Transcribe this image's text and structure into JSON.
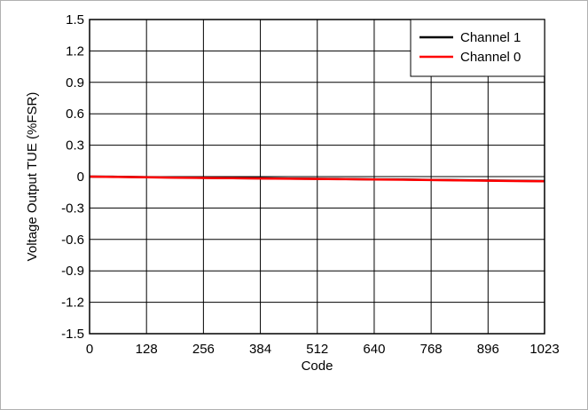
{
  "chart_data": {
    "type": "line",
    "title": "",
    "xlabel": "Code",
    "ylabel": "Voltage Output TUE (%FSR)",
    "xlim": [
      0,
      1023
    ],
    "ylim": [
      -1.5,
      1.5
    ],
    "x_ticks": [
      0,
      128,
      256,
      384,
      512,
      640,
      768,
      896,
      1023
    ],
    "x_tick_labels": [
      "0",
      "128",
      "256",
      "384",
      "512",
      "640",
      "768",
      "896",
      "1023"
    ],
    "y_ticks": [
      1.5,
      1.2,
      0.9,
      0.6,
      0.3,
      0,
      -0.3,
      -0.6,
      -0.9,
      -1.2,
      -1.5
    ],
    "y_tick_labels": [
      "1.5",
      "1.2",
      "0.9",
      "0.6",
      "0.3",
      "0",
      "-0.3",
      "-0.6",
      "-0.9",
      "-1.2",
      "-1.5"
    ],
    "grid": true,
    "legend_position": "top-right",
    "series": [
      {
        "name": "Channel 1",
        "color": "#000000",
        "x": [
          0,
          64,
          128,
          192,
          256,
          320,
          384,
          448,
          512,
          576,
          640,
          704,
          768,
          832,
          896,
          960,
          1023
        ],
        "y": [
          0.0,
          -0.002,
          -0.005,
          -0.008,
          -0.012,
          -0.014,
          -0.016,
          -0.019,
          -0.021,
          -0.023,
          -0.026,
          -0.028,
          -0.031,
          -0.034,
          -0.037,
          -0.04,
          -0.042
        ]
      },
      {
        "name": "Channel 0",
        "color": "#ff0000",
        "x": [
          0,
          64,
          128,
          192,
          256,
          320,
          384,
          448,
          512,
          576,
          640,
          704,
          768,
          832,
          896,
          960,
          1023
        ],
        "y": [
          0.0,
          -0.003,
          -0.007,
          -0.01,
          -0.013,
          -0.015,
          -0.018,
          -0.02,
          -0.022,
          -0.025,
          -0.027,
          -0.03,
          -0.033,
          -0.036,
          -0.039,
          -0.042,
          -0.045
        ]
      }
    ]
  }
}
